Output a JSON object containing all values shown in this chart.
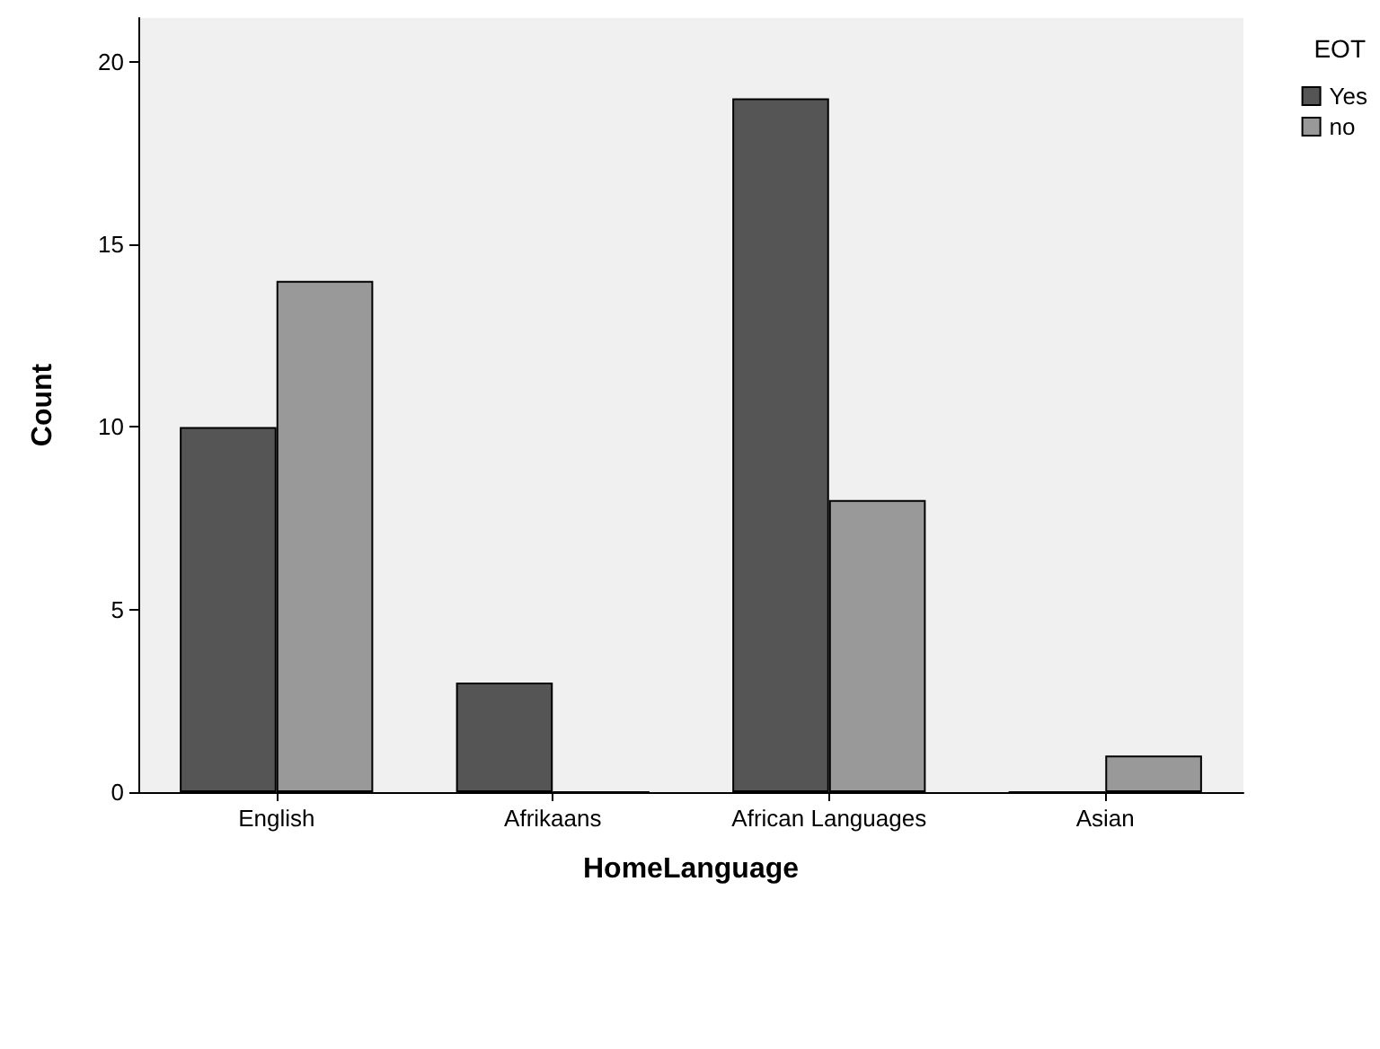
{
  "chart_data": {
    "type": "bar",
    "xlabel": "HomeLanguage",
    "ylabel": "Count",
    "legend_title": "EOT",
    "categories": [
      "English",
      "Afrikaans",
      "African Languages",
      "Asian"
    ],
    "series": [
      {
        "name": "Yes",
        "color": "#555555",
        "values": [
          10,
          3,
          19,
          0
        ]
      },
      {
        "name": "no",
        "color": "#999999",
        "values": [
          14,
          0,
          8,
          1
        ]
      }
    ],
    "ylim": [
      0,
      21.2
    ],
    "yticks": [
      0,
      5,
      10,
      15,
      20
    ],
    "grid": false,
    "legend": "top right"
  }
}
